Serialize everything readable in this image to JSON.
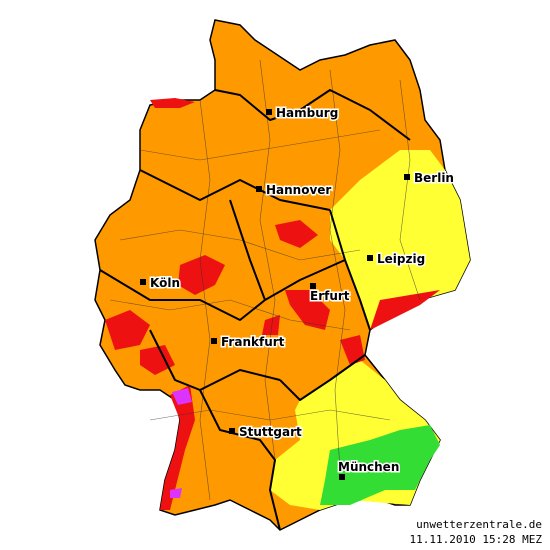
{
  "cities": [
    {
      "name": "Hamburg"
    },
    {
      "name": "Berlin"
    },
    {
      "name": "Hannover"
    },
    {
      "name": "Leipzig"
    },
    {
      "name": "Köln"
    },
    {
      "name": "Erfurt"
    },
    {
      "name": "Frankfurt"
    },
    {
      "name": "Stuttgart"
    },
    {
      "name": "München"
    }
  ],
  "footer": {
    "site": "unwetterzentrale.de",
    "timestamp": "11.11.2010 15:28 MEZ"
  }
}
